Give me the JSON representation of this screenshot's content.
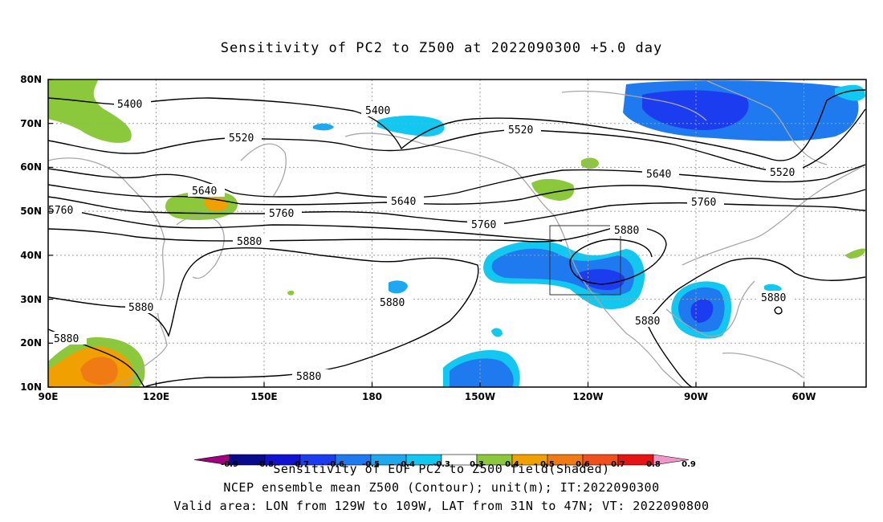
{
  "title": "Sensitivity of PC2 to Z500 at 2022090300 +5.0 day",
  "axes": {
    "lat_ticks": [
      "80N",
      "70N",
      "60N",
      "50N",
      "40N",
      "30N",
      "20N",
      "10N"
    ],
    "lon_ticks": [
      "90E",
      "120E",
      "150E",
      "180",
      "150W",
      "120W",
      "90W",
      "60W"
    ]
  },
  "contour_labels": {
    "c5400a": "5400",
    "c5400b": "5400",
    "c5520a": "5520",
    "c5520b": "5520",
    "c5520c": "5520",
    "c5640a": "5640",
    "c5640b": "5640",
    "c5640c": "5640",
    "c5760a": "5760",
    "c5760b": "5760",
    "c5760c": "5760",
    "c5760d": "5760",
    "c5880a": "5880",
    "c5880b": "5880",
    "c5880c": "5880",
    "c5880d": "5880",
    "c5880e": "5880",
    "c5880f": "5880",
    "c5880g": "5880"
  },
  "colorbar": {
    "labels": [
      "-0.9",
      "-0.8",
      "-0.7",
      "-0.6",
      "-0.5",
      "-0.4",
      "-0.3",
      "0.3",
      "0.4",
      "0.5",
      "0.6",
      "0.7",
      "0.8",
      "0.9"
    ],
    "colors": [
      "#a0007f",
      "#0a0a8c",
      "#1212d2",
      "#1c3cf0",
      "#1e7aee",
      "#1ea8f0",
      "#12c8f0",
      "#ffffff",
      "#8cc83c",
      "#f0a000",
      "#f07a14",
      "#f0501e",
      "#e61414",
      "#f096c8"
    ]
  },
  "captions": {
    "line1": "Sensitivity of EOF PC2 to Z500 field(Shaded)",
    "line2": "NCEP ensemble mean Z500 (Contour); unit(m); IT:2022090300",
    "line3": "Valid area: LON from 129W to 109W, LAT from 31N to 47N; VT: 2022090800"
  },
  "colors": {
    "coast": "#a8a8a8",
    "contour": "#000000",
    "grid": "#a0a0a0"
  }
}
